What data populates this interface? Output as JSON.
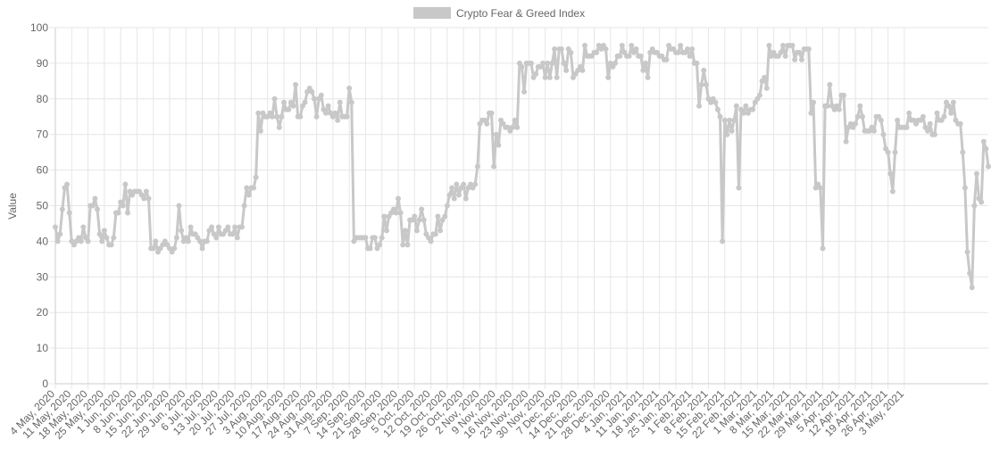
{
  "chart_data": {
    "type": "line",
    "legend": {
      "label": "Crypto Fear & Greed Index",
      "position": "top"
    },
    "ylabel": "Value",
    "xlabel": "",
    "ylim": [
      0,
      100
    ],
    "yticks": [
      0,
      10,
      20,
      30,
      40,
      50,
      60,
      70,
      80,
      90,
      100
    ],
    "grid": true,
    "colors": {
      "line": "#c8c8c8",
      "grid": "#e6e6e6",
      "axis": "#666666"
    },
    "xtick_labels": [
      "4 May, 2020",
      "11 May, 2020",
      "18 May, 2020",
      "25 May, 2020",
      "1 Jun, 2020",
      "8 Jun, 2020",
      "15 Jun, 2020",
      "22 Jun, 2020",
      "29 Jun, 2020",
      "6 Jul, 2020",
      "13 Jul, 2020",
      "20 Jul, 2020",
      "27 Jul, 2020",
      "3 Aug, 2020",
      "10 Aug, 2020",
      "17 Aug, 2020",
      "24 Aug, 2020",
      "31 Aug, 2020",
      "7 Sep, 2020",
      "14 Sep, 2020",
      "21 Sep, 2020",
      "28 Sep, 2020",
      "5 Oct, 2020",
      "12 Oct, 2020",
      "19 Oct, 2020",
      "26 Oct, 2020",
      "2 Nov, 2020",
      "9 Nov, 2020",
      "16 Nov, 2020",
      "23 Nov, 2020",
      "30 Nov, 2020",
      "7 Dec, 2020",
      "14 Dec, 2020",
      "21 Dec, 2020",
      "28 Dec, 2020",
      "4 Jan, 2021",
      "11 Jan, 2021",
      "18 Jan, 2021",
      "25 Jan, 2021",
      "1 Feb, 2021",
      "8 Feb, 2021",
      "15 Feb, 2021",
      "22 Feb, 2021",
      "1 Mar, 2021",
      "8 Mar, 2021",
      "15 Mar, 2021",
      "22 Mar, 2021",
      "29 Mar, 2021",
      "5 Apr, 2021",
      "12 Apr, 2021",
      "19 Apr, 2021",
      "26 Apr, 2021",
      "3 May, 2021"
    ],
    "series": [
      {
        "name": "Crypto Fear & Greed Index",
        "start": "4 May, 2020",
        "end": "3 May, 2021",
        "values": [
          44,
          40,
          42,
          49,
          55,
          56,
          48,
          40,
          39,
          40,
          41,
          40,
          44,
          41,
          40,
          50,
          50,
          52,
          49,
          42,
          40,
          43,
          41,
          39,
          39,
          41,
          48,
          48,
          51,
          50,
          56,
          48,
          54,
          53,
          54,
          54,
          54,
          53,
          52,
          54,
          52,
          38,
          38,
          40,
          37,
          38,
          39,
          40,
          39,
          38,
          37,
          38,
          41,
          50,
          43,
          40,
          41,
          40,
          44,
          42,
          42,
          41,
          40,
          38,
          40,
          40,
          43,
          44,
          42,
          41,
          44,
          42,
          42,
          43,
          44,
          42,
          42,
          44,
          41,
          44,
          44,
          50,
          55,
          53,
          55,
          55,
          58,
          76,
          71,
          76,
          75,
          75,
          76,
          75,
          80,
          75,
          72,
          75,
          79,
          77,
          77,
          79,
          78,
          84,
          75,
          75,
          78,
          79,
          82,
          83,
          82,
          80,
          75,
          80,
          81,
          77,
          76,
          78,
          76,
          75,
          76,
          74,
          79,
          75,
          75,
          75,
          83,
          79,
          40,
          41,
          41,
          41,
          41,
          41,
          38,
          38,
          41,
          41,
          38,
          39,
          41,
          47,
          43,
          47,
          48,
          49,
          48,
          52,
          48,
          39,
          43,
          39,
          46,
          46,
          47,
          43,
          46,
          49,
          46,
          42,
          41,
          40,
          42,
          42,
          47,
          43,
          46,
          47,
          50,
          53,
          55,
          52,
          56,
          53,
          55,
          56,
          52,
          55,
          56,
          55,
          56,
          61,
          73,
          74,
          74,
          73,
          76,
          76,
          61,
          70,
          67,
          74,
          73,
          72,
          72,
          71,
          72,
          74,
          72,
          90,
          89,
          82,
          90,
          90,
          90,
          86,
          87,
          89,
          89,
          90,
          86,
          90,
          86,
          90,
          94,
          86,
          94,
          94,
          90,
          88,
          94,
          93,
          86,
          87,
          88,
          89,
          88,
          95,
          92,
          92,
          92,
          93,
          93,
          95,
          94,
          95,
          94,
          86,
          90,
          89,
          90,
          92,
          92,
          95,
          93,
          92,
          92,
          95,
          93,
          94,
          92,
          92,
          88,
          90,
          86,
          93,
          94,
          93,
          93,
          92,
          92,
          91,
          91,
          95,
          94,
          94,
          93,
          93,
          95,
          93,
          93,
          94,
          92,
          94,
          90,
          90,
          78,
          84,
          88,
          84,
          80,
          79,
          80,
          79,
          77,
          75,
          40,
          74,
          70,
          74,
          71,
          74,
          78,
          55,
          77,
          76,
          78,
          76,
          77,
          77,
          79,
          80,
          81,
          85,
          86,
          83,
          95,
          92,
          93,
          92,
          92,
          93,
          95,
          92,
          95,
          95,
          95,
          91,
          93,
          93,
          91,
          94,
          94,
          94,
          76,
          79,
          55,
          56,
          55,
          38,
          78,
          78,
          84,
          78,
          77,
          78,
          77,
          81,
          81,
          68,
          72,
          73,
          72,
          73,
          75,
          78,
          75,
          71,
          71,
          71,
          72,
          71,
          75,
          75,
          74,
          70,
          66,
          65,
          59,
          54,
          65,
          74,
          72,
          72,
          72,
          72,
          76,
          74,
          74,
          73,
          74,
          74,
          75,
          72,
          71,
          73,
          70,
          70,
          76,
          74,
          74,
          75,
          79,
          78,
          76,
          79,
          74,
          73,
          73,
          65,
          55,
          37,
          31,
          27,
          50,
          59,
          52,
          51,
          68,
          66,
          61
        ]
      }
    ]
  }
}
